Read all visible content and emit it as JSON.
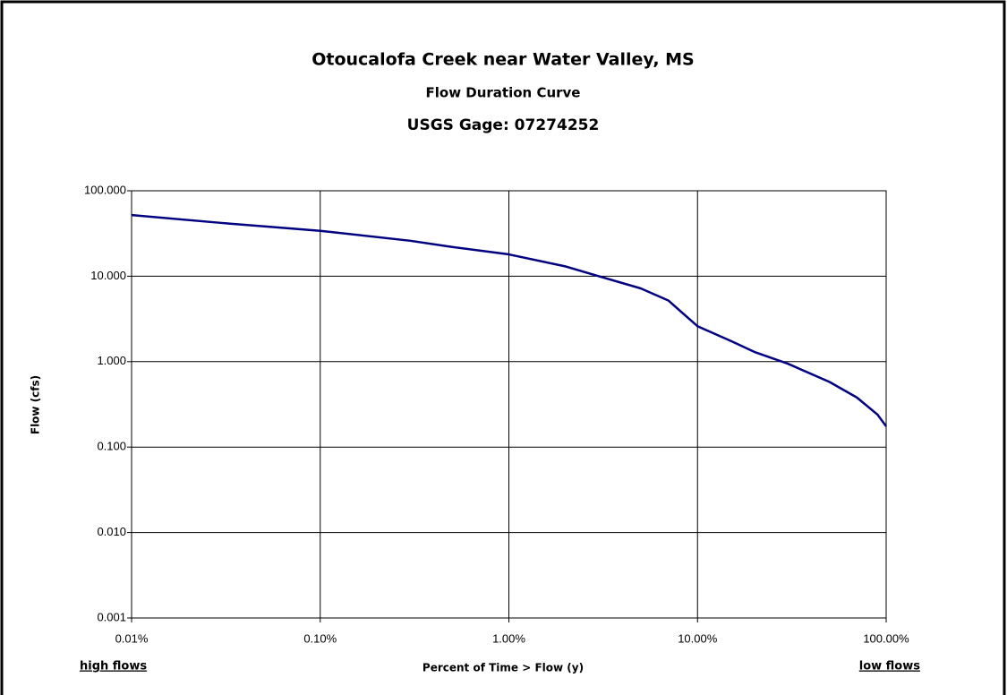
{
  "chart_data": {
    "type": "line",
    "title": "Otoucalofa Creek near Water Valley, MS",
    "subtitles": [
      "Flow Duration Curve",
      "USGS Gage:  07274252"
    ],
    "x_label": "Percent of Time > Flow (y)",
    "y_label": "Flow (cfs)",
    "annotations": [
      "high flows",
      "low flows"
    ],
    "x_scale": "log",
    "y_scale": "log",
    "grid": true,
    "color": "#000080",
    "x": [
      0.01,
      0.03,
      0.1,
      0.3,
      0.5,
      1,
      2,
      3,
      5,
      7,
      10,
      15,
      20,
      30,
      50,
      70,
      90,
      100
    ],
    "values": [
      52,
      42,
      34,
      26,
      22,
      18,
      13,
      10,
      7.2,
      5.2,
      2.6,
      1.75,
      1.3,
      0.95,
      0.58,
      0.38,
      0.24,
      0.175
    ],
    "xlim": [
      0.01,
      100
    ],
    "ylim": [
      0.001,
      100
    ],
    "xticks": [
      {
        "value": 0.01,
        "label": "0.01%"
      },
      {
        "value": 0.1,
        "label": "0.10%"
      },
      {
        "value": 1,
        "label": "1.00%"
      },
      {
        "value": 10,
        "label": "10.00%"
      },
      {
        "value": 100,
        "label": "100.00%"
      }
    ],
    "yticks": [
      0.001,
      {
        "value": 0.01,
        "label": "0.010"
      },
      {
        "value": 0.1,
        "label": "0.100"
      },
      {
        "value": 1,
        "label": "1.000"
      },
      {
        "value": 10,
        "label": "10.000"
      },
      {
        "value": 100,
        "label": "100.000"
      }
    ]
  }
}
